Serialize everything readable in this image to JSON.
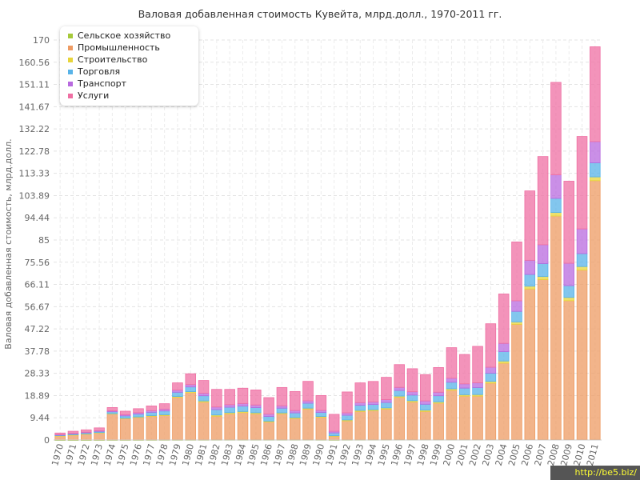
{
  "title": "Валовая добавленная стоимость Кувейта, млрд.долл., 1970-2011 гг.",
  "watermark": "http://be5.biz/",
  "chart_data": {
    "type": "bar",
    "stacked": true,
    "title": "Валовая добавленная стоимость Кувейта, млрд.долл., 1970-2011 гг.",
    "xlabel": "",
    "ylabel": "Валовая добавленная стоимость, млрд.долл.",
    "ylim": [
      0,
      170
    ],
    "yticks": [
      "0",
      "9.44",
      "18.89",
      "28.33",
      "37.78",
      "47.22",
      "56.67",
      "66.11",
      "75.56",
      "85",
      "94.44",
      "103.89",
      "113.33",
      "122.78",
      "132.22",
      "141.67",
      "151.11",
      "160.56",
      "170"
    ],
    "grid": true,
    "legend_position": "top-left",
    "categories": [
      "1970",
      "1971",
      "1972",
      "1973",
      "1974",
      "1975",
      "1976",
      "1977",
      "1978",
      "1979",
      "1980",
      "1981",
      "1982",
      "1983",
      "1984",
      "1985",
      "1986",
      "1987",
      "1988",
      "1989",
      "1990",
      "1991",
      "1992",
      "1993",
      "1994",
      "1995",
      "1996",
      "1997",
      "1998",
      "1999",
      "2000",
      "2001",
      "2002",
      "2003",
      "2004",
      "2005",
      "2006",
      "2007",
      "2008",
      "2009",
      "2010",
      "2011"
    ],
    "series": [
      {
        "name": "Сельское хозяйство",
        "color": "#a6c93a",
        "values": [
          0.02,
          0.02,
          0.02,
          0.03,
          0.05,
          0.05,
          0.06,
          0.07,
          0.08,
          0.09,
          0.1,
          0.1,
          0.12,
          0.12,
          0.12,
          0.12,
          0.12,
          0.12,
          0.12,
          0.13,
          0.11,
          0.06,
          0.12,
          0.13,
          0.14,
          0.14,
          0.15,
          0.15,
          0.15,
          0.15,
          0.15,
          0.15,
          0.15,
          0.16,
          0.16,
          0.17,
          0.17,
          0.18,
          0.19,
          0.2,
          0.21,
          0.22
        ]
      },
      {
        "name": "Промышленность",
        "color": "#ee9b63",
        "values": [
          1.7,
          2.1,
          2.5,
          3.0,
          11.0,
          9.0,
          9.5,
          10.0,
          10.3,
          18.0,
          20.0,
          16.0,
          10.0,
          11.0,
          11.5,
          11.0,
          7.5,
          11.0,
          9.0,
          13.0,
          9.5,
          1.5,
          8.0,
          12.0,
          12.3,
          13.0,
          18.0,
          16.0,
          12.0,
          15.5,
          21.0,
          18.5,
          18.5,
          24.0,
          32.5,
          49.0,
          64.0,
          68.0,
          95.0,
          59.0,
          72.0,
          110.0
        ]
      },
      {
        "name": "Строительство",
        "color": "#e8d53a",
        "values": [
          0.1,
          0.1,
          0.1,
          0.12,
          0.15,
          0.2,
          0.25,
          0.3,
          0.35,
          0.4,
          0.45,
          0.5,
          0.5,
          0.5,
          0.5,
          0.45,
          0.4,
          0.4,
          0.4,
          0.4,
          0.4,
          0.25,
          0.4,
          0.45,
          0.45,
          0.5,
          0.5,
          0.55,
          0.55,
          0.55,
          0.6,
          0.6,
          0.65,
          0.75,
          0.9,
          1.0,
          1.2,
          1.3,
          1.5,
          1.4,
          1.5,
          1.6
        ]
      },
      {
        "name": "Торговля",
        "color": "#58b3e8",
        "values": [
          0.3,
          0.4,
          0.45,
          0.5,
          0.8,
          1.0,
          1.2,
          1.4,
          1.6,
          1.8,
          2.0,
          2.2,
          2.3,
          2.3,
          2.3,
          2.2,
          2.0,
          2.0,
          2.0,
          2.1,
          1.7,
          1.2,
          2.0,
          2.2,
          2.2,
          2.3,
          2.4,
          2.4,
          2.5,
          2.6,
          2.8,
          2.8,
          3.0,
          3.5,
          4.0,
          4.5,
          5.0,
          5.5,
          6.0,
          5.0,
          5.5,
          6.0
        ]
      },
      {
        "name": "Транспорт",
        "color": "#b86adf",
        "values": [
          0.15,
          0.2,
          0.25,
          0.3,
          0.4,
          0.5,
          0.6,
          0.7,
          0.8,
          0.9,
          1.0,
          1.1,
          1.1,
          1.1,
          1.1,
          1.1,
          1.0,
          1.0,
          1.0,
          1.0,
          0.9,
          0.7,
          1.0,
          1.1,
          1.1,
          1.2,
          1.3,
          1.4,
          1.4,
          1.5,
          1.7,
          1.8,
          2.0,
          2.5,
          3.5,
          4.5,
          6.0,
          8.0,
          10.0,
          9.5,
          10.5,
          9.0
        ]
      },
      {
        "name": "Услуги",
        "color": "#ef6fa3",
        "values": [
          0.7,
          0.9,
          1.0,
          1.2,
          1.4,
          1.5,
          1.7,
          2.0,
          2.3,
          3.1,
          4.6,
          5.4,
          7.5,
          6.5,
          6.5,
          6.4,
          7.0,
          7.8,
          8.1,
          8.3,
          6.3,
          7.2,
          8.9,
          8.4,
          8.7,
          9.5,
          9.7,
          9.8,
          11.2,
          10.5,
          13.0,
          12.5,
          15.5,
          18.5,
          21.0,
          25.0,
          29.5,
          37.5,
          39.3,
          34.9,
          39.3,
          40.3
        ]
      }
    ]
  }
}
